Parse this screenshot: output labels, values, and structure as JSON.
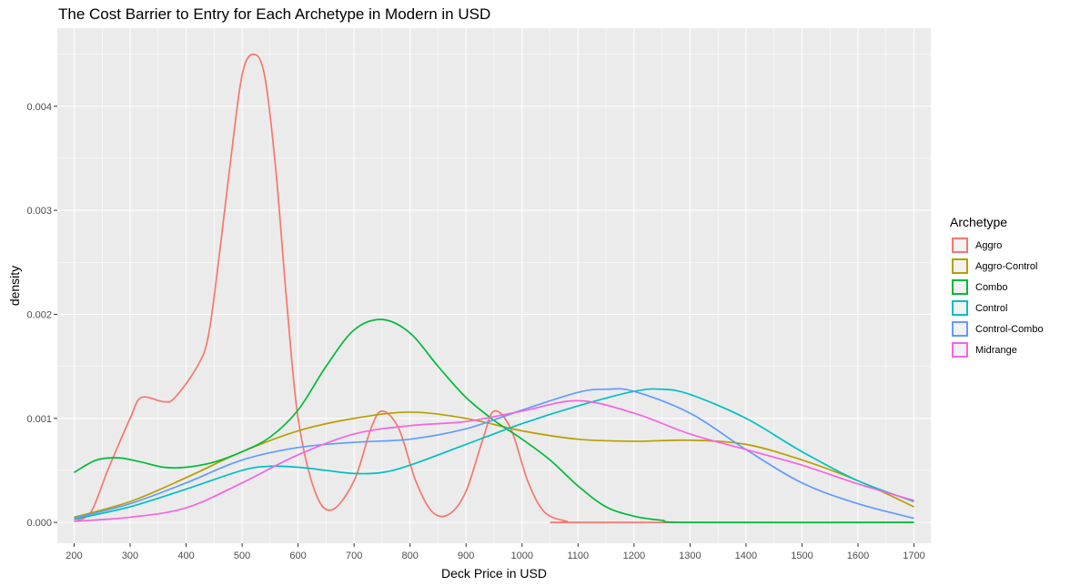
{
  "chart_data": {
    "type": "line",
    "title": "The Cost Barrier to Entry for Each Archetype in Modern in USD",
    "xlabel": "Deck Price in USD",
    "ylabel": "density",
    "xlim": [
      170,
      1730
    ],
    "ylim": [
      -0.0002,
      0.00475
    ],
    "x_ticks": [
      200,
      300,
      400,
      500,
      600,
      700,
      800,
      900,
      1000,
      1100,
      1200,
      1300,
      1400,
      1500,
      1600,
      1700
    ],
    "y_ticks": [
      0.0,
      0.001,
      0.002,
      0.003,
      0.004
    ],
    "y_tick_labels": [
      "0.000",
      "0.001",
      "0.002",
      "0.003",
      "0.004"
    ],
    "grid": true,
    "legend": {
      "title": "Archetype",
      "position": "right"
    },
    "series": [
      {
        "name": "Aggro",
        "color": "#F8766D",
        "points": [
          [
            200,
            1e-05
          ],
          [
            230,
            0.0001
          ],
          [
            260,
            0.0005
          ],
          [
            300,
            0.001
          ],
          [
            320,
            0.0012
          ],
          [
            360,
            0.00116
          ],
          [
            380,
            0.0012
          ],
          [
            420,
            0.0015
          ],
          [
            440,
            0.0018
          ],
          [
            460,
            0.0026
          ],
          [
            480,
            0.0035
          ],
          [
            500,
            0.0043
          ],
          [
            520,
            0.0045
          ],
          [
            540,
            0.0043
          ],
          [
            560,
            0.0034
          ],
          [
            580,
            0.0021
          ],
          [
            600,
            0.001
          ],
          [
            630,
            0.0003
          ],
          [
            660,
            0.00012
          ],
          [
            700,
            0.0004
          ],
          [
            730,
            0.0009
          ],
          [
            750,
            0.00107
          ],
          [
            780,
            0.0009
          ],
          [
            810,
            0.0004
          ],
          [
            840,
            0.0001
          ],
          [
            870,
            8e-05
          ],
          [
            900,
            0.0003
          ],
          [
            930,
            0.0008
          ],
          [
            950,
            0.00107
          ],
          [
            980,
            0.0009
          ],
          [
            1010,
            0.0004
          ],
          [
            1040,
            0.0001
          ],
          [
            1080,
            1e-05
          ],
          [
            1100,
            0.0
          ],
          [
            1700,
            0.0
          ]
        ]
      },
      {
        "name": "Aggro-Control",
        "color": "#B79F00",
        "points": [
          [
            200,
            5e-05
          ],
          [
            300,
            0.0002
          ],
          [
            400,
            0.00043
          ],
          [
            500,
            0.00068
          ],
          [
            600,
            0.00088
          ],
          [
            700,
            0.001
          ],
          [
            800,
            0.00106
          ],
          [
            900,
            0.001
          ],
          [
            1000,
            0.00088
          ],
          [
            1100,
            0.0008
          ],
          [
            1200,
            0.00078
          ],
          [
            1300,
            0.00079
          ],
          [
            1400,
            0.00075
          ],
          [
            1500,
            0.0006
          ],
          [
            1600,
            0.0004
          ],
          [
            1700,
            0.00015
          ]
        ]
      },
      {
        "name": "Combo",
        "color": "#00BA38",
        "points": [
          [
            200,
            0.00048
          ],
          [
            240,
            0.0006
          ],
          [
            280,
            0.00062
          ],
          [
            320,
            0.00058
          ],
          [
            360,
            0.00053
          ],
          [
            400,
            0.00053
          ],
          [
            450,
            0.00058
          ],
          [
            500,
            0.00068
          ],
          [
            550,
            0.00082
          ],
          [
            600,
            0.00108
          ],
          [
            650,
            0.0015
          ],
          [
            700,
            0.00185
          ],
          [
            750,
            0.00195
          ],
          [
            800,
            0.00182
          ],
          [
            850,
            0.0015
          ],
          [
            900,
            0.0012
          ],
          [
            950,
            0.00098
          ],
          [
            1000,
            0.0008
          ],
          [
            1050,
            0.0006
          ],
          [
            1100,
            0.00035
          ],
          [
            1150,
            0.00015
          ],
          [
            1200,
            6e-05
          ],
          [
            1250,
            2e-05
          ],
          [
            1300,
            0.0
          ],
          [
            1700,
            0.0
          ]
        ]
      },
      {
        "name": "Control",
        "color": "#00BFC4",
        "points": [
          [
            200,
            3e-05
          ],
          [
            300,
            0.00015
          ],
          [
            400,
            0.00032
          ],
          [
            500,
            0.0005
          ],
          [
            550,
            0.00054
          ],
          [
            600,
            0.00053
          ],
          [
            650,
            0.0005
          ],
          [
            700,
            0.00047
          ],
          [
            750,
            0.00048
          ],
          [
            800,
            0.00055
          ],
          [
            900,
            0.00075
          ],
          [
            1000,
            0.00095
          ],
          [
            1100,
            0.00112
          ],
          [
            1200,
            0.00126
          ],
          [
            1250,
            0.00128
          ],
          [
            1300,
            0.00123
          ],
          [
            1400,
            0.001
          ],
          [
            1500,
            0.00068
          ],
          [
            1600,
            0.0004
          ],
          [
            1700,
            0.0002
          ]
        ]
      },
      {
        "name": "Control-Combo",
        "color": "#619CFF",
        "points": [
          [
            200,
            4e-05
          ],
          [
            300,
            0.00018
          ],
          [
            400,
            0.00038
          ],
          [
            500,
            0.0006
          ],
          [
            600,
            0.00072
          ],
          [
            700,
            0.00077
          ],
          [
            800,
            0.0008
          ],
          [
            900,
            0.0009
          ],
          [
            1000,
            0.00108
          ],
          [
            1100,
            0.00125
          ],
          [
            1150,
            0.00128
          ],
          [
            1200,
            0.00126
          ],
          [
            1300,
            0.00105
          ],
          [
            1400,
            0.0007
          ],
          [
            1500,
            0.00038
          ],
          [
            1600,
            0.00018
          ],
          [
            1700,
            4e-05
          ]
        ]
      },
      {
        "name": "Midrange",
        "color": "#F564E3",
        "points": [
          [
            200,
            1e-05
          ],
          [
            300,
            5e-05
          ],
          [
            400,
            0.00014
          ],
          [
            500,
            0.00038
          ],
          [
            600,
            0.00065
          ],
          [
            700,
            0.00085
          ],
          [
            800,
            0.00093
          ],
          [
            900,
            0.00097
          ],
          [
            1000,
            0.00107
          ],
          [
            1100,
            0.00117
          ],
          [
            1200,
            0.00105
          ],
          [
            1300,
            0.00085
          ],
          [
            1400,
            0.0007
          ],
          [
            1500,
            0.00055
          ],
          [
            1600,
            0.00037
          ],
          [
            1700,
            0.00021
          ]
        ]
      }
    ]
  }
}
